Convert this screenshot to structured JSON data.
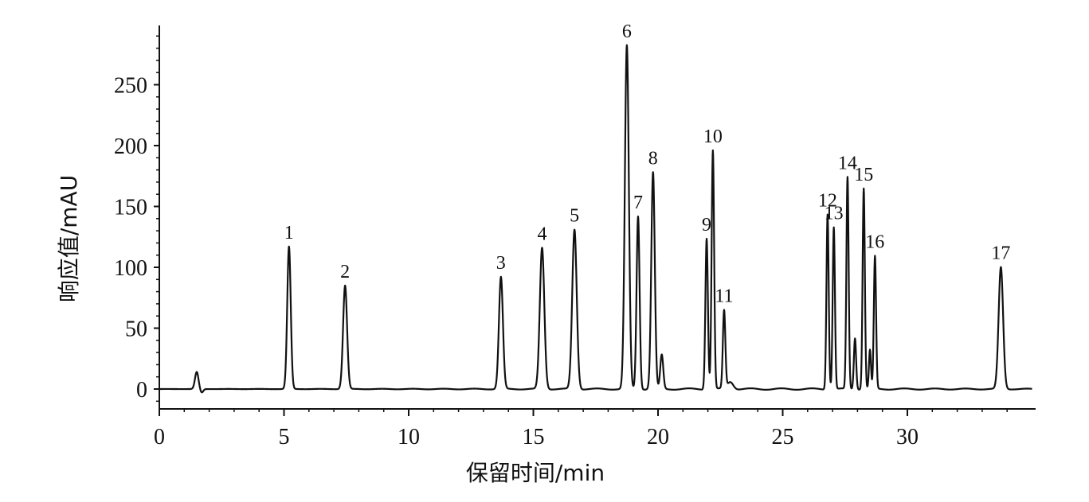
{
  "chart_data": {
    "type": "line",
    "xlabel": "保留时间/min",
    "ylabel": "响应值/mAU",
    "xlim": [
      0,
      35
    ],
    "ylim": [
      -15,
      300
    ],
    "xticks": [
      0,
      5,
      10,
      15,
      20,
      25,
      30
    ],
    "yticks": [
      0,
      50,
      100,
      150,
      200,
      250
    ],
    "grid": false,
    "peaks": [
      {
        "label": "",
        "x": 1.5,
        "y": 14,
        "w": 0.07
      },
      {
        "label": "1",
        "x": 5.2,
        "y": 117,
        "w": 0.07
      },
      {
        "label": "2",
        "x": 7.45,
        "y": 85,
        "w": 0.08
      },
      {
        "label": "3",
        "x": 13.7,
        "y": 92,
        "w": 0.08
      },
      {
        "label": "4",
        "x": 15.35,
        "y": 116,
        "w": 0.09
      },
      {
        "label": "5",
        "x": 16.65,
        "y": 131,
        "w": 0.09
      },
      {
        "label": "6",
        "x": 18.75,
        "y": 282,
        "w": 0.08
      },
      {
        "label": "7",
        "x": 19.2,
        "y": 142,
        "w": 0.06
      },
      {
        "label": "8",
        "x": 19.8,
        "y": 178,
        "w": 0.07
      },
      {
        "label": "",
        "x": 20.15,
        "y": 28,
        "w": 0.06
      },
      {
        "label": "9",
        "x": 21.95,
        "y": 124,
        "w": 0.05
      },
      {
        "label": "10",
        "x": 22.2,
        "y": 196,
        "w": 0.05
      },
      {
        "label": "11",
        "x": 22.65,
        "y": 64,
        "w": 0.05
      },
      {
        "label": "12",
        "x": 26.8,
        "y": 144,
        "w": 0.045
      },
      {
        "label": "13",
        "x": 27.05,
        "y": 133,
        "w": 0.045
      },
      {
        "label": "",
        "x": 27.9,
        "y": 42,
        "w": 0.045
      },
      {
        "label": "14",
        "x": 27.6,
        "y": 174,
        "w": 0.045
      },
      {
        "label": "15",
        "x": 28.25,
        "y": 165,
        "w": 0.045
      },
      {
        "label": "",
        "x": 28.5,
        "y": 32,
        "w": 0.04
      },
      {
        "label": "16",
        "x": 28.7,
        "y": 109,
        "w": 0.045
      },
      {
        "label": "17",
        "x": 33.75,
        "y": 100,
        "w": 0.09
      }
    ]
  }
}
